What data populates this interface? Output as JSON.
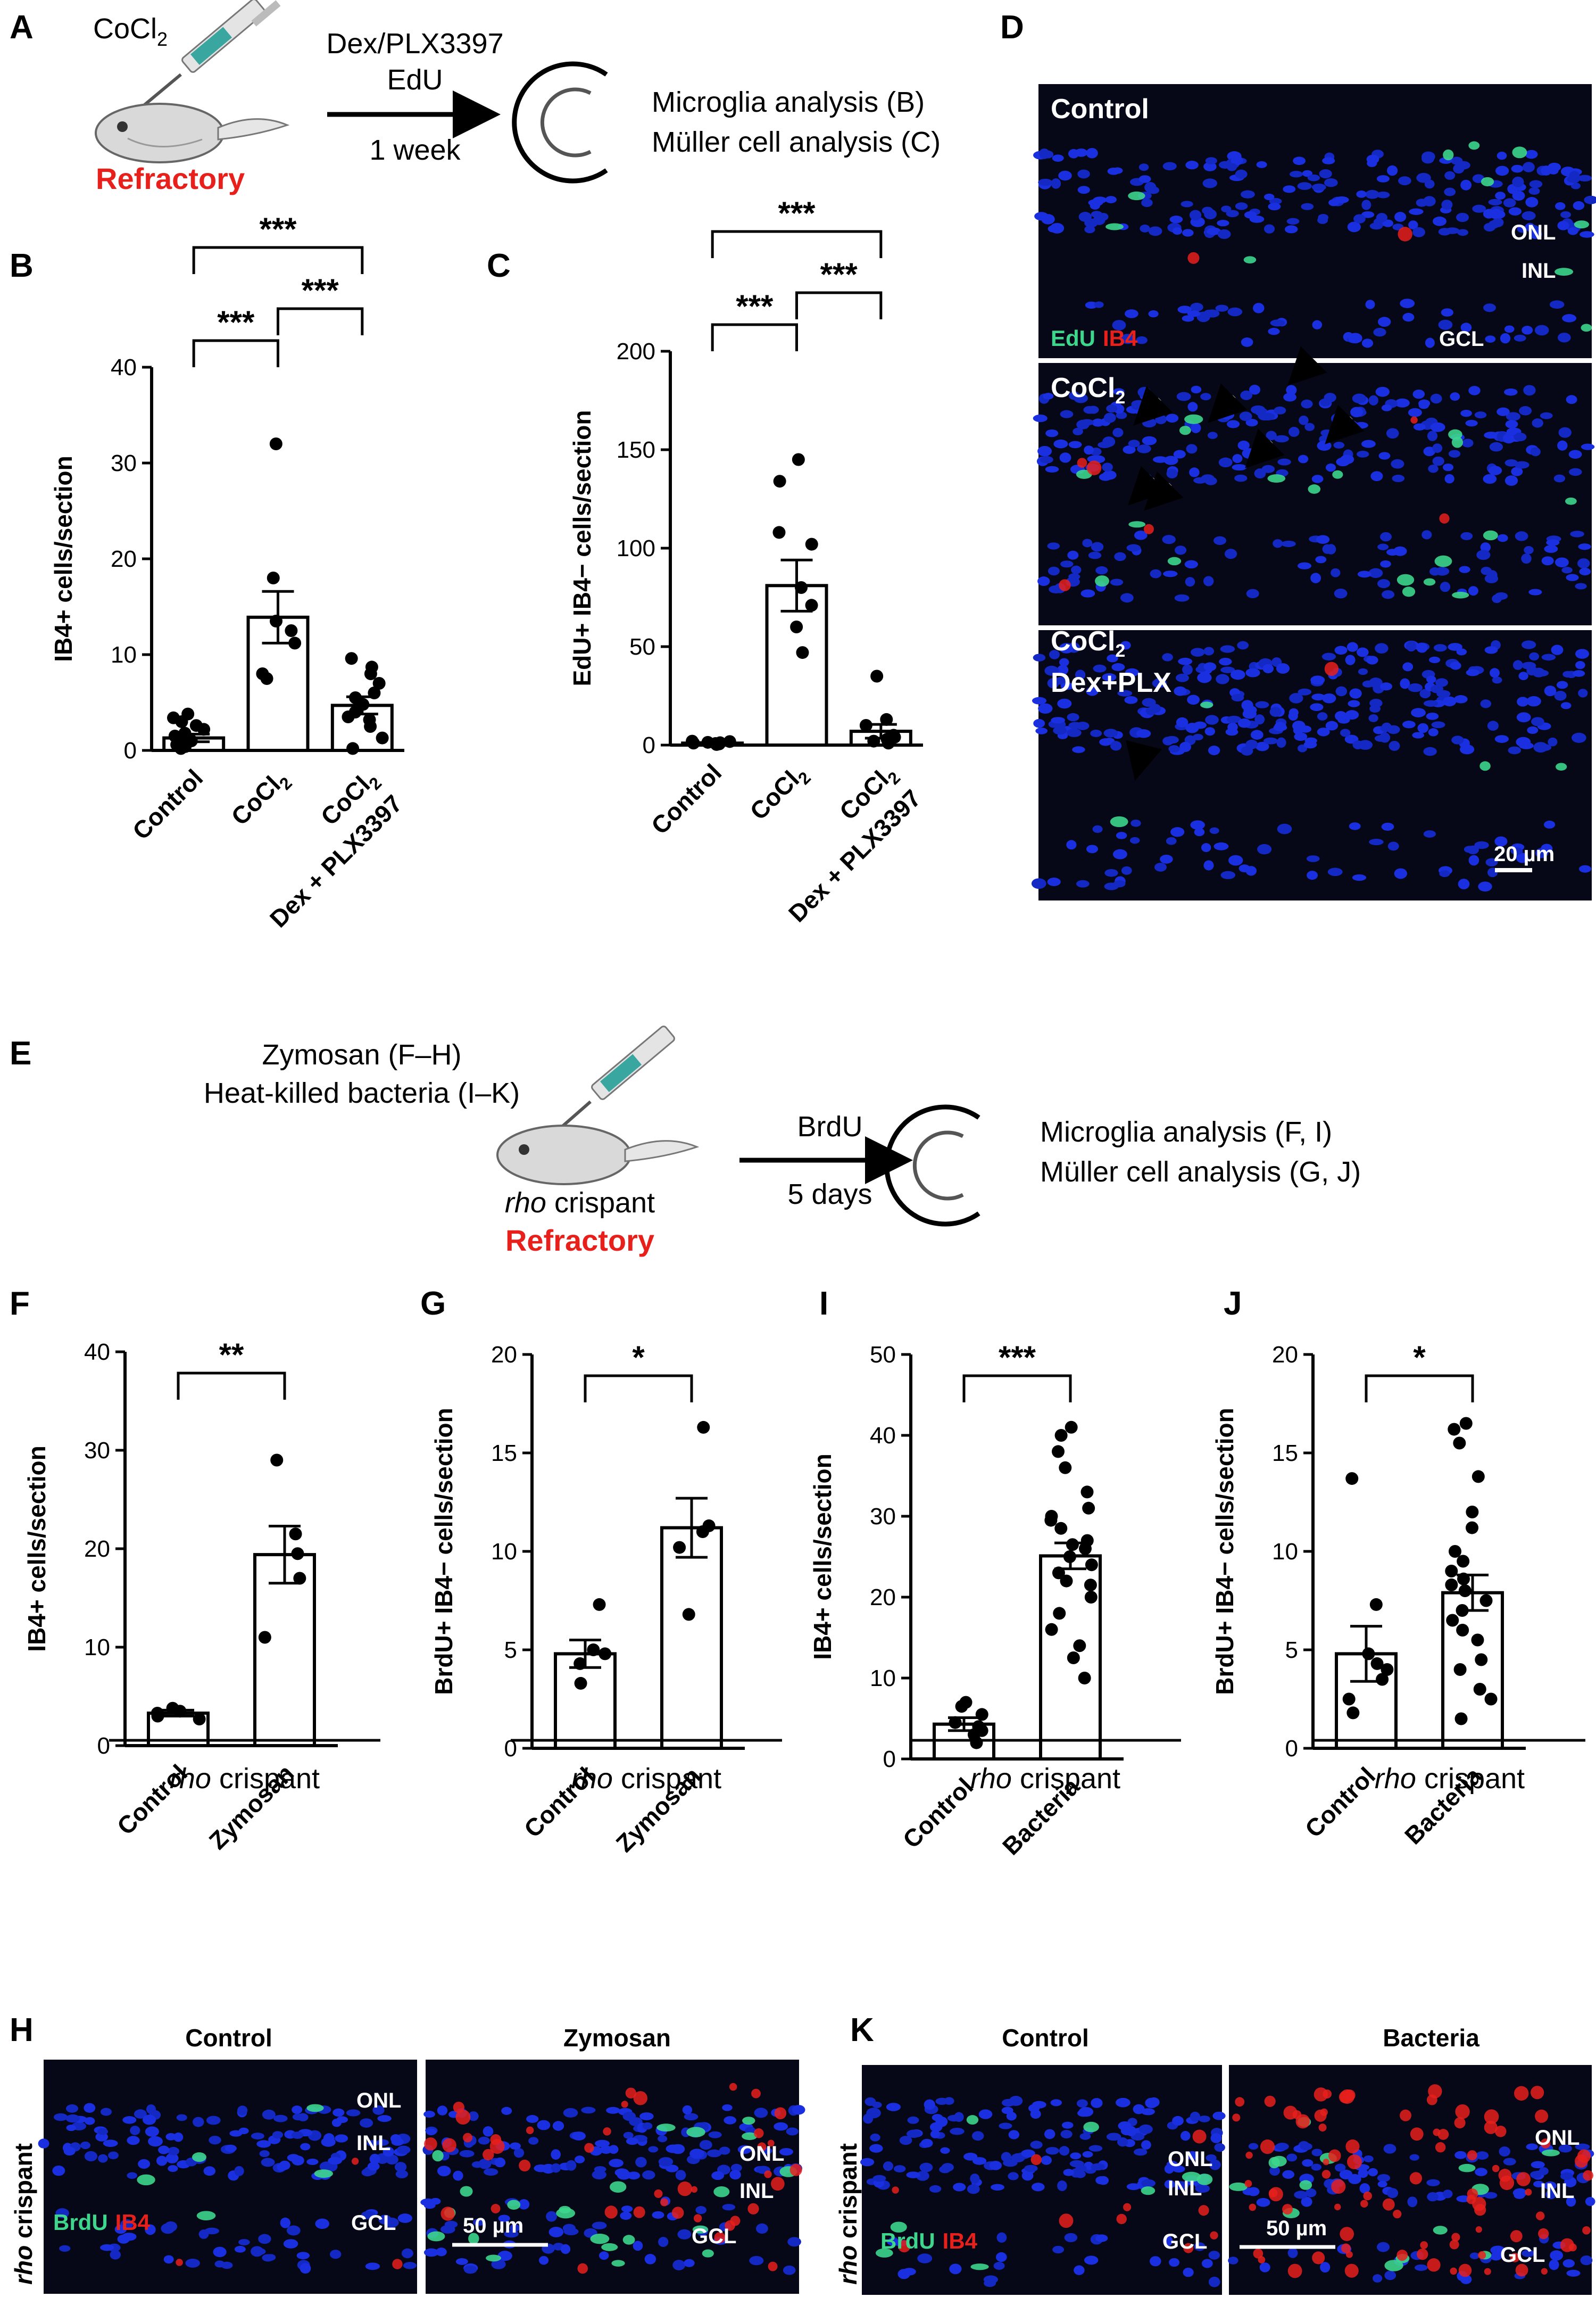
{
  "panel_labels": {
    "A": "A",
    "B": "B",
    "C": "C",
    "D": "D",
    "E": "E",
    "F": "F",
    "G": "G",
    "H": "H",
    "I": "I",
    "J": "J",
    "K": "K"
  },
  "schematic_a": {
    "drug": "CoCl",
    "drug_sub": "2",
    "status": "Refractory",
    "treatment_line1": "Dex/PLX3397",
    "treatment_line2": "EdU",
    "duration": "1 week",
    "analysis_1": "Microglia analysis (B)",
    "analysis_2": "Müller cell analysis (C)"
  },
  "schematic_e": {
    "agent_1": "Zymosan (F–H)",
    "agent_2": "Heat-killed bacteria (I–K)",
    "model_italic": "rho",
    "model_rest": " crispant",
    "status": "Refractory",
    "treatment": "BrdU",
    "duration": "5 days",
    "analysis_1": "Microglia analysis (F, I)",
    "analysis_2": "Müller cell analysis (G, J)"
  },
  "group_label": {
    "italic": "rho",
    "rest": " crispant"
  },
  "panel_d": {
    "rows": [
      {
        "title": "Control",
        "title2": ""
      },
      {
        "title": "CoCl",
        "title_sub": "2",
        "title2": ""
      },
      {
        "title": "CoCl",
        "title_sub": "2",
        "title2": "Dex+PLX"
      }
    ],
    "layer_onl": "ONL",
    "layer_inl": "INL",
    "layer_gcl": "GCL",
    "stain_1": "EdU",
    "stain_2": "IB4",
    "scale_bar": "20 µm",
    "colors": {
      "nuclei": "#1428d2",
      "edu": "#3dd68c",
      "ib4": "#e8201c"
    }
  },
  "panel_h": {
    "side_label": "rho crispant",
    "left_title": "Control",
    "right_title": "Zymosan",
    "stain_1": "BrdU",
    "stain_2": "IB4",
    "layer_onl": "ONL",
    "layer_inl": "INL",
    "layer_gcl": "GCL",
    "scale_bar": "50 µm"
  },
  "panel_k": {
    "side_label": "rho crispant",
    "left_title": "Control",
    "right_title": "Bacteria",
    "stain_1": "BrdU",
    "stain_2": "IB4",
    "layer_onl": "ONL",
    "layer_inl": "INL",
    "layer_gcl": "GCL",
    "scale_bar": "50 µm"
  },
  "chart_data": [
    {
      "panel": "B",
      "type": "bar",
      "categories": [
        "Control",
        "CoCl2",
        "CoCl2 Dex + PLX3397"
      ],
      "ylabel": "IB4+ cells/section",
      "ylim": [
        0,
        40
      ],
      "yticks": [
        0,
        10,
        20,
        30,
        40
      ],
      "values": [
        1.3,
        13.9,
        4.7
      ],
      "sem": [
        0.4,
        2.7,
        0.9
      ],
      "points": [
        [
          0.2,
          0.4,
          0.6,
          0.8,
          1.0,
          1.2,
          1.4,
          1.5,
          1.8,
          2.2,
          2.6,
          3.0,
          3.4,
          3.8
        ],
        [
          7.5,
          8.0,
          11.2,
          13.5,
          18.0,
          32.0,
          12.5
        ],
        [
          0.2,
          1.3,
          2.5,
          3.2,
          4.0,
          4.8,
          5.5,
          6.0,
          7.0,
          8.0,
          8.7,
          9.6,
          3.5
        ]
      ],
      "significance": [
        {
          "from": 0,
          "to": 1,
          "label": "***"
        },
        {
          "from": 1,
          "to": 2,
          "label": "***"
        },
        {
          "from": 0,
          "to": 2,
          "label": "***"
        }
      ]
    },
    {
      "panel": "C",
      "type": "bar",
      "categories": [
        "Control",
        "CoCl2",
        "CoCl2 Dex + PLX3397"
      ],
      "ylabel": "EdU+ IB4− cells/section",
      "ylim": [
        0,
        200
      ],
      "yticks": [
        0,
        50,
        100,
        150,
        200
      ],
      "values": [
        1.0,
        81.0,
        7.0
      ],
      "sem": [
        0.3,
        13.0,
        3.5
      ],
      "points": [
        [
          0.3,
          0.6,
          1.0,
          1.4,
          1.8,
          2.0,
          0.8,
          1.2
        ],
        [
          47,
          60,
          71,
          80,
          102,
          108,
          134,
          145
        ],
        [
          1,
          2,
          3,
          4,
          5,
          10,
          13,
          35
        ]
      ],
      "significance": [
        {
          "from": 0,
          "to": 1,
          "label": "***"
        },
        {
          "from": 1,
          "to": 2,
          "label": "***"
        },
        {
          "from": 0,
          "to": 2,
          "label": "***"
        }
      ]
    },
    {
      "panel": "F",
      "type": "bar",
      "categories": [
        "Control",
        "Zymosan"
      ],
      "ylabel": "IB4+ cells/section",
      "ylim": [
        0,
        40
      ],
      "yticks": [
        0,
        10,
        20,
        30,
        40
      ],
      "values": [
        3.3,
        19.4
      ],
      "sem": [
        0.3,
        2.9
      ],
      "points": [
        [
          2.7,
          3.0,
          3.3,
          3.5,
          3.8
        ],
        [
          11.0,
          17.0,
          19.5,
          21.5,
          29.0
        ]
      ],
      "significance": [
        {
          "from": 0,
          "to": 1,
          "label": "**"
        }
      ]
    },
    {
      "panel": "G",
      "type": "bar",
      "categories": [
        "Control",
        "Zymosan"
      ],
      "ylabel": "BrdU+ IB4− cells/section",
      "ylim": [
        0,
        20
      ],
      "yticks": [
        0,
        5,
        10,
        15,
        20
      ],
      "values": [
        4.8,
        11.2
      ],
      "sem": [
        0.7,
        1.5
      ],
      "points": [
        [
          3.3,
          4.3,
          4.8,
          5.0,
          7.3
        ],
        [
          6.8,
          10.2,
          11.0,
          11.3,
          16.3
        ]
      ],
      "significance": [
        {
          "from": 0,
          "to": 1,
          "label": "*"
        }
      ]
    },
    {
      "panel": "I",
      "type": "bar",
      "categories": [
        "Control",
        "Bacteria"
      ],
      "ylabel": "IB4+ cells/section",
      "ylim": [
        0,
        50
      ],
      "yticks": [
        0,
        10,
        20,
        30,
        40,
        50
      ],
      "values": [
        4.3,
        25.1
      ],
      "sem": [
        0.8,
        1.6
      ],
      "points": [
        [
          2.0,
          3.0,
          3.5,
          4.0,
          4.5,
          5.5,
          6.5,
          7.0
        ],
        [
          10.0,
          12.5,
          14.0,
          16.0,
          18.0,
          20.0,
          21.5,
          22.0,
          23.0,
          24.0,
          25.0,
          26.0,
          26.5,
          27.0,
          28.5,
          29.5,
          30.0,
          31.0,
          33.0,
          36.0,
          38.0,
          41.0,
          40.0
        ]
      ],
      "significance": [
        {
          "from": 0,
          "to": 1,
          "label": "***"
        }
      ]
    },
    {
      "panel": "J",
      "type": "bar",
      "categories": [
        "Control",
        "Bacteria"
      ],
      "ylabel": "BrdU+ IB4− cells/section",
      "ylim": [
        0,
        20
      ],
      "yticks": [
        0,
        5,
        10,
        15,
        20
      ],
      "values": [
        4.8,
        7.9
      ],
      "sem": [
        1.4,
        0.9
      ],
      "points": [
        [
          1.8,
          2.5,
          3.5,
          4.0,
          4.3,
          4.8,
          7.3,
          13.7
        ],
        [
          1.5,
          2.5,
          3.0,
          4.0,
          4.5,
          5.5,
          6.0,
          6.5,
          7.0,
          7.5,
          8.0,
          8.3,
          8.6,
          9.0,
          9.5,
          10.0,
          11.2,
          12.0,
          13.8,
          15.5,
          16.2,
          16.5
        ]
      ],
      "significance": [
        {
          "from": 0,
          "to": 1,
          "label": "*"
        }
      ]
    }
  ]
}
